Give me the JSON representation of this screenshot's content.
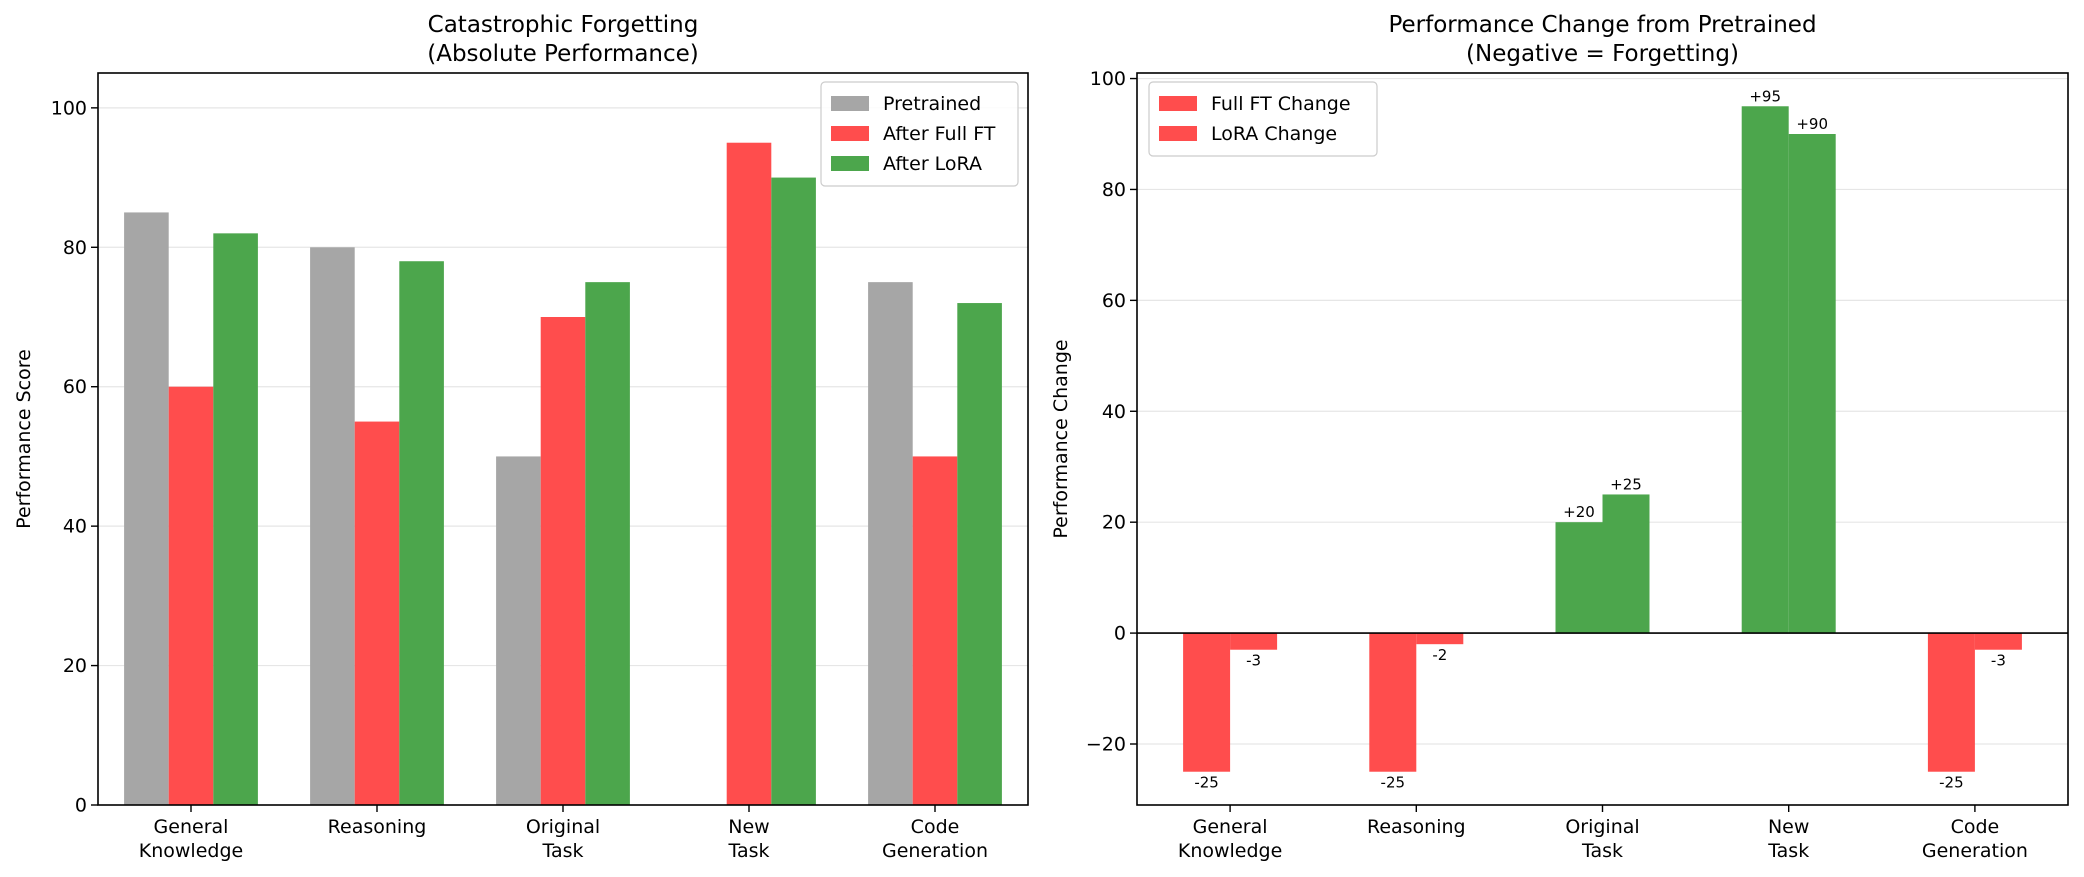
{
  "chart_data": [
    {
      "type": "bar",
      "title": "Catastrophic Forgetting\n(Absolute Performance)",
      "xlabel": "",
      "ylabel": "Performance Score",
      "categories": [
        "General\nKnowledge",
        "Reasoning",
        "Original\nTask",
        "New\nTask",
        "Code\nGeneration"
      ],
      "series": [
        {
          "name": "Pretrained",
          "color": "#a6a6a6",
          "values": [
            85,
            80,
            50,
            0,
            75
          ]
        },
        {
          "name": "After Full FT",
          "color": "#ff4d4d",
          "values": [
            60,
            55,
            70,
            95,
            50
          ]
        },
        {
          "name": "After LoRA",
          "color": "#4ca64c",
          "values": [
            82,
            78,
            75,
            90,
            72
          ]
        }
      ],
      "ylim": [
        0,
        105
      ],
      "yticks": [
        0,
        20,
        40,
        60,
        80,
        100
      ],
      "grid": "y",
      "legend": "top-right"
    },
    {
      "type": "bar",
      "title": "Performance Change from Pretrained\n(Negative = Forgetting)",
      "xlabel": "",
      "ylabel": "Performance Change",
      "categories": [
        "General\nKnowledge",
        "Reasoning",
        "Original\nTask",
        "New\nTask",
        "Code\nGeneration"
      ],
      "series": [
        {
          "name": "Full FT Change",
          "values": [
            -25,
            -25,
            20,
            95,
            -25
          ],
          "labels": [
            "-25",
            "-25",
            "+20",
            "+95",
            "-25"
          ]
        },
        {
          "name": "LoRA Change",
          "values": [
            -3,
            -2,
            25,
            90,
            -3
          ],
          "labels": [
            "-3",
            "-2",
            "+25",
            "+90",
            "-3"
          ]
        }
      ],
      "positive_color": "#4ca64c",
      "negative_color": "#ff4d4d",
      "legend_color": "#ff4d4d",
      "ylim": [
        -31,
        101
      ],
      "yticks": [
        -20,
        0,
        20,
        40,
        60,
        80,
        100
      ],
      "grid": "y",
      "zero_line": true,
      "legend": "top-left"
    }
  ]
}
